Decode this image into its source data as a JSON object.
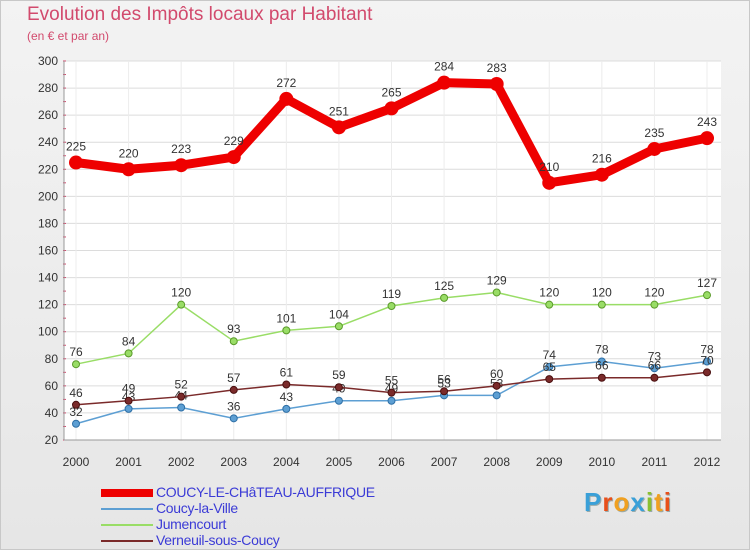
{
  "title": "Evolution des Impôts locaux par Habitant",
  "subtitle": "(en € et par an)",
  "brand": {
    "letters": [
      "P",
      "r",
      "o",
      "x",
      "i",
      "t",
      "i"
    ],
    "colors": [
      "#3aa0d8",
      "#e84f1a",
      "#f0a020",
      "#3aa0d8",
      "#8ac030",
      "#f0a020",
      "#e84f1a"
    ]
  },
  "chart_data": {
    "type": "line",
    "title": "Evolution des Impôts locaux par Habitant",
    "subtitle": "(en € et par an)",
    "x": [
      "2000",
      "2001",
      "2002",
      "2003",
      "2004",
      "2005",
      "2006",
      "2007",
      "2008",
      "2009",
      "2010",
      "2011",
      "2012"
    ],
    "ylim": [
      20,
      300
    ],
    "yticks": [
      20,
      40,
      60,
      80,
      100,
      120,
      140,
      160,
      180,
      200,
      220,
      240,
      260,
      280,
      300
    ],
    "grid": true,
    "legend": "bottom-left",
    "series": [
      {
        "name": "COUCY-LE-CHâTEAU-AUFFRIQUE",
        "color": "#ee0000",
        "values": [
          225,
          220,
          223,
          229,
          272,
          251,
          265,
          284,
          283,
          210,
          216,
          235,
          243
        ],
        "labels": [
          "225",
          "220",
          "223",
          "229",
          "272",
          "251",
          "265",
          "284",
          "283",
          "210",
          "216",
          "235",
          "243"
        ]
      },
      {
        "name": "Coucy-la-Ville",
        "color": "#5d9fd3",
        "values": [
          32,
          43,
          44,
          36,
          43,
          49,
          49,
          53,
          53,
          74,
          78,
          73,
          78
        ],
        "labels": [
          "32",
          "43",
          "44",
          "36",
          "43",
          "49",
          "49",
          "53",
          "53",
          "74",
          "78",
          "73",
          "78"
        ]
      },
      {
        "name": "Jumencourt",
        "color": "#99dd66",
        "values": [
          76,
          84,
          120,
          93,
          101,
          104,
          119,
          125,
          129,
          120,
          120,
          120,
          127
        ],
        "labels": [
          "76",
          "84",
          "120",
          "93",
          "101",
          "104",
          "119",
          "125",
          "129",
          "120",
          "120",
          "120",
          "127"
        ]
      },
      {
        "name": "Verneuil-sous-Coucy",
        "color": "#7a2a2a",
        "values": [
          46,
          49,
          52,
          57,
          61,
          59,
          55,
          56,
          60,
          65,
          66,
          66,
          70
        ],
        "labels": [
          "46",
          "49",
          "52",
          "57",
          "61",
          "59",
          "55",
          "56",
          "60",
          "65",
          "66",
          "66",
          "70"
        ]
      }
    ]
  }
}
